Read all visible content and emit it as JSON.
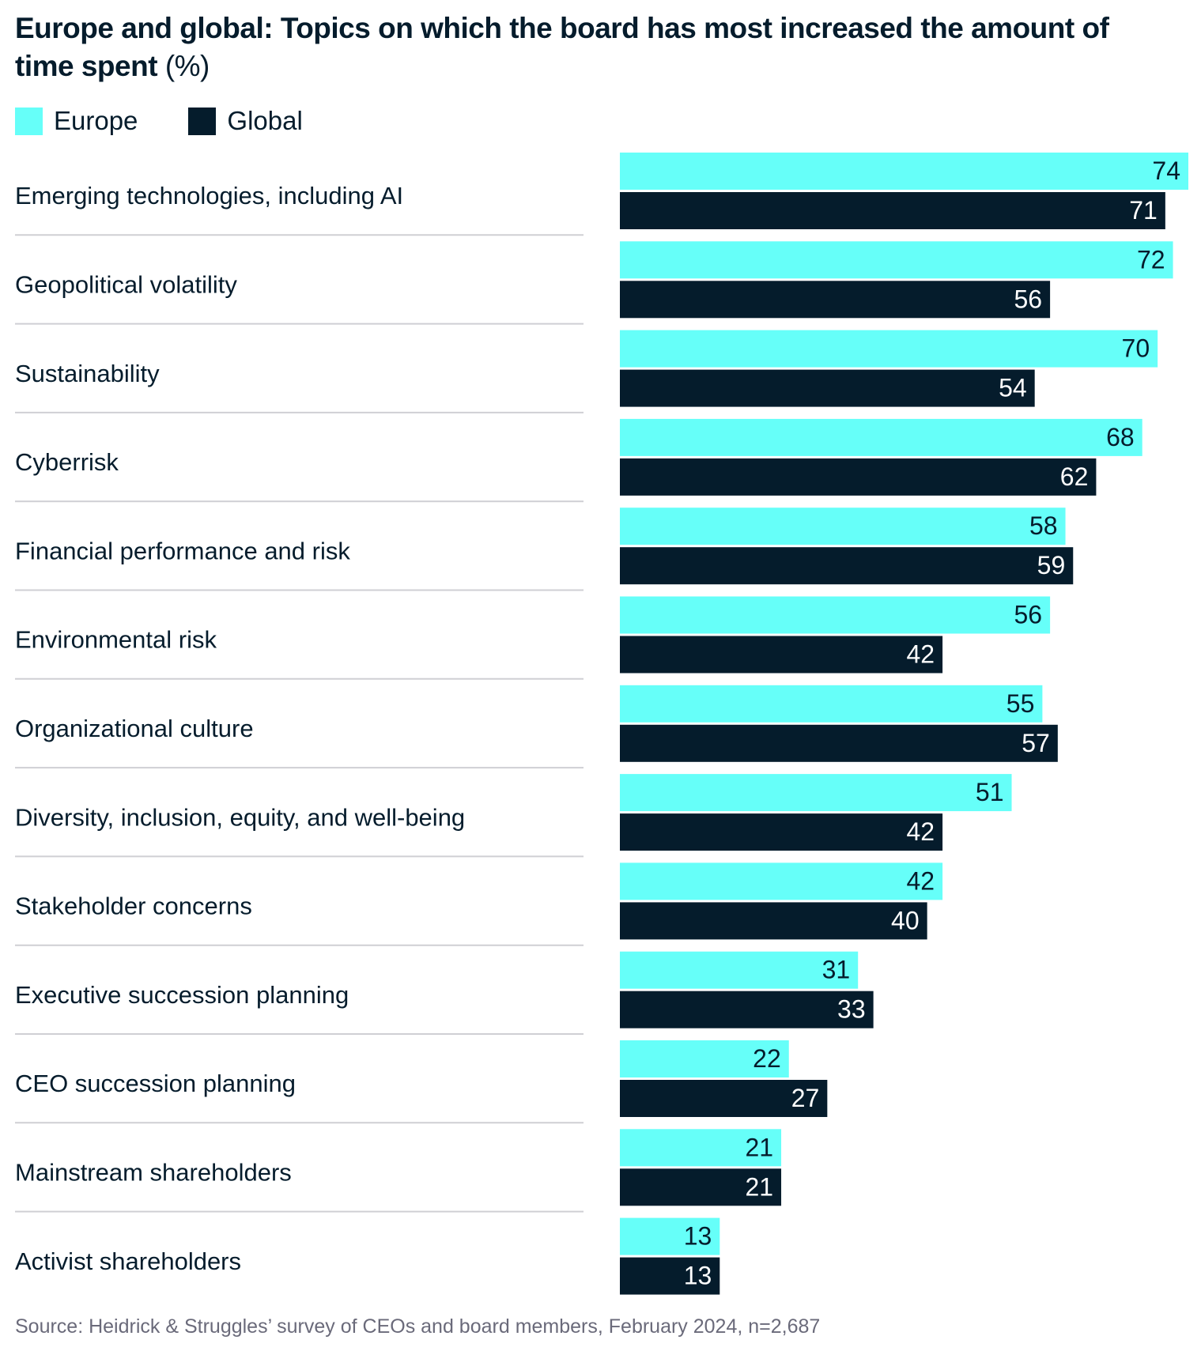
{
  "chart_data": {
    "type": "bar",
    "orientation": "horizontal",
    "title": "Europe and global: Topics on which the board has most increased the amount of time spent",
    "title_unit": "(%)",
    "categories": [
      "Emerging technologies, including AI",
      "Geopolitical volatility",
      "Sustainability",
      "Cyberrisk",
      "Financial performance and risk",
      "Environmental risk",
      "Organizational culture",
      "Diversity, inclusion, equity, and well-being",
      "Stakeholder concerns",
      "Executive succession planning",
      "CEO succession planning",
      "Mainstream shareholders",
      "Activist shareholders"
    ],
    "series": [
      {
        "name": "Europe",
        "color": "#66FFF9",
        "values": [
          74,
          72,
          70,
          68,
          58,
          56,
          55,
          51,
          42,
          31,
          22,
          21,
          13
        ]
      },
      {
        "name": "Global",
        "color": "#051C2C",
        "values": [
          71,
          56,
          54,
          62,
          59,
          42,
          57,
          42,
          40,
          33,
          27,
          21,
          13
        ]
      }
    ],
    "xlim": [
      0,
      74
    ],
    "grid": false,
    "legend_position": "top-left",
    "data_labels": true
  },
  "source": "Source: Heidrick & Struggles’ survey of CEOs and board members, February 2024, n=2,687"
}
